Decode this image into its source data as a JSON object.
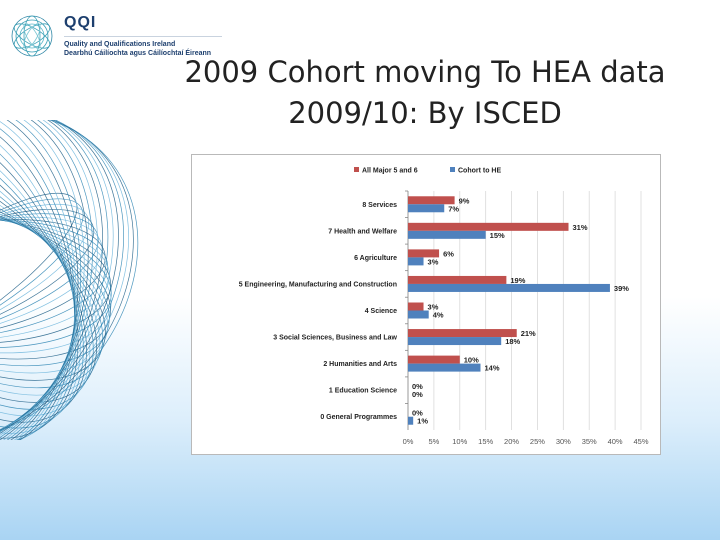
{
  "logo": {
    "name": "QQI",
    "line1": "Quality and Qualifications Ireland",
    "line2": "Dearbhú Cáilíochta agus Cáilíochtaí Éireann"
  },
  "title": {
    "line1": "2009 Cohort moving To HEA data",
    "line2": "2009/10: By ISCED"
  },
  "colors": {
    "series_all": "#c0504d",
    "series_cohort": "#4f81bd",
    "grid": "#d9d9d9"
  },
  "chart_data": {
    "type": "bar",
    "orientation": "horizontal",
    "categories": [
      "8 Services",
      "7 Health and Welfare",
      "6 Agriculture",
      "5 Engineering, Manufacturing and Construction",
      "4 Science",
      "3 Social Sciences, Business and Law",
      "2 Humanities and Arts",
      "1 Education Science",
      "0 General Programmes"
    ],
    "series": [
      {
        "name": "All Major 5 and 6",
        "values": [
          9,
          31,
          6,
          19,
          3,
          21,
          10,
          0,
          0
        ],
        "labels": [
          "9%",
          "31%",
          "6%",
          "19%",
          "3%",
          "21%",
          "10%",
          "0%",
          "0%"
        ]
      },
      {
        "name": "Cohort to HE",
        "values": [
          7,
          15,
          3,
          39,
          4,
          18,
          14,
          0,
          1
        ],
        "labels": [
          "7%",
          "15%",
          "3%",
          "39%",
          "4%",
          "18%",
          "14%",
          "0%",
          "1%"
        ]
      }
    ],
    "xlim": [
      0,
      45
    ],
    "xticks": [
      "0%",
      "5%",
      "10%",
      "15%",
      "20%",
      "25%",
      "30%",
      "35%",
      "40%",
      "45%"
    ],
    "grid": true,
    "legend": "top"
  }
}
